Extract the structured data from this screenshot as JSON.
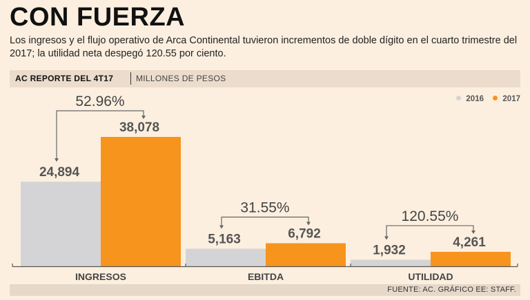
{
  "header": {
    "title": "CON FUERZA",
    "subtitle": "Los ingresos y el flujo operativo de Arca Continental tuvieron incrementos de doble dígito en el cuarto trimestre del 2017; la utilidad neta despegó 120.55 por ciento.",
    "report_label": "AC REPORTE DEL 4T17",
    "unit_label": "MILLONES DE PESOS"
  },
  "legend": [
    {
      "name": "2016",
      "color": "#d4d4d6"
    },
    {
      "name": "2017",
      "color": "#f7941d"
    }
  ],
  "source": "FUENTE: AC. GRÁFICO EE: STAFF.",
  "chart_data": {
    "type": "bar",
    "title": "CON FUERZA",
    "ylabel": "Millones de pesos",
    "categories": [
      "INGRESOS",
      "EBITDA",
      "UTILIDAD"
    ],
    "series": [
      {
        "name": "2016",
        "values": [
          24894,
          5163,
          1932
        ],
        "labels": [
          "24,894",
          "5,163",
          "1,932"
        ],
        "color": "#d4d4d6"
      },
      {
        "name": "2017",
        "values": [
          38078,
          6792,
          4261
        ],
        "labels": [
          "38,078",
          "6,792",
          "4,261"
        ],
        "color": "#f7941d"
      }
    ],
    "changes": [
      "52.96%",
      "31.55%",
      "120.55%"
    ],
    "ylim": [
      0,
      38078
    ]
  }
}
